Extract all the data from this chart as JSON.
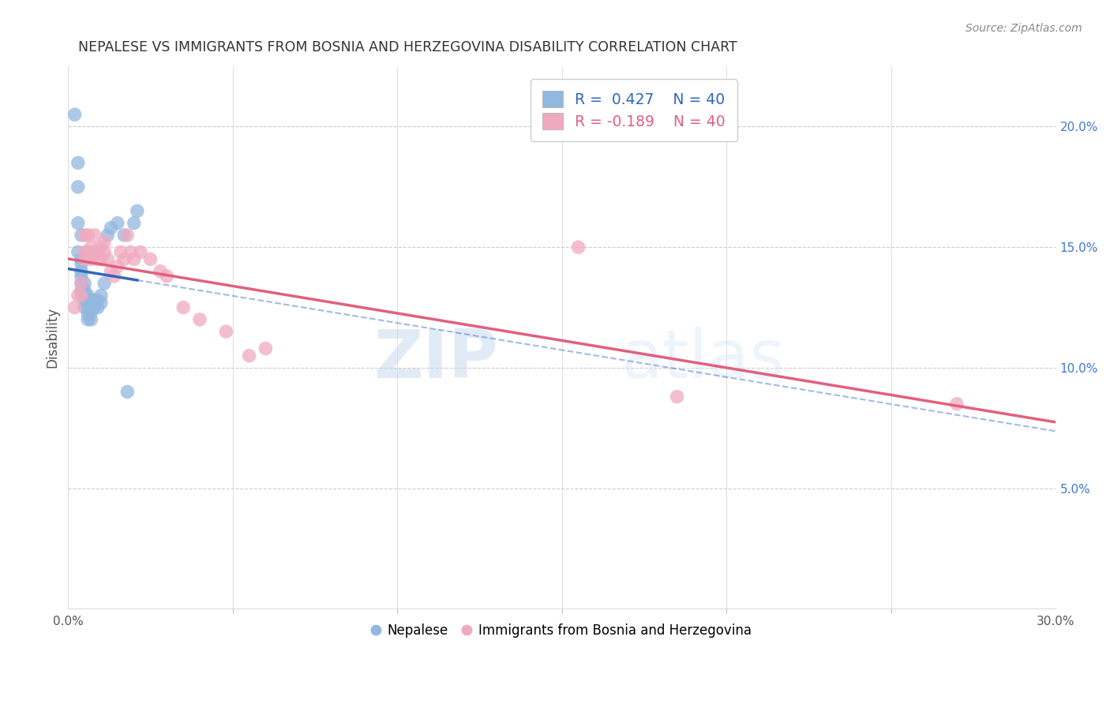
{
  "title": "NEPALESE VS IMMIGRANTS FROM BOSNIA AND HERZEGOVINA DISABILITY CORRELATION CHART",
  "source": "Source: ZipAtlas.com",
  "ylabel": "Disability",
  "right_yticks": [
    "20.0%",
    "15.0%",
    "10.0%",
    "5.0%"
  ],
  "right_ytick_vals": [
    0.2,
    0.15,
    0.1,
    0.05
  ],
  "xlim": [
    0.0,
    0.3
  ],
  "ylim": [
    0.0,
    0.225
  ],
  "blue_color": "#92b8e0",
  "pink_color": "#f0aabf",
  "blue_line_color": "#3366bb",
  "pink_line_color": "#e06080",
  "watermark_zip": "ZIP",
  "watermark_atlas": "atlas",
  "nepalese_x": [
    0.002,
    0.003,
    0.003,
    0.003,
    0.003,
    0.004,
    0.004,
    0.004,
    0.004,
    0.004,
    0.004,
    0.005,
    0.005,
    0.005,
    0.005,
    0.005,
    0.006,
    0.006,
    0.006,
    0.006,
    0.006,
    0.007,
    0.007,
    0.007,
    0.007,
    0.008,
    0.008,
    0.009,
    0.009,
    0.01,
    0.01,
    0.011,
    0.012,
    0.013,
    0.015,
    0.017,
    0.018,
    0.02,
    0.021,
    0.004
  ],
  "nepalese_y": [
    0.205,
    0.185,
    0.175,
    0.16,
    0.148,
    0.145,
    0.143,
    0.14,
    0.138,
    0.135,
    0.132,
    0.135,
    0.132,
    0.13,
    0.128,
    0.125,
    0.13,
    0.128,
    0.125,
    0.122,
    0.12,
    0.128,
    0.125,
    0.123,
    0.12,
    0.128,
    0.125,
    0.128,
    0.125,
    0.13,
    0.127,
    0.135,
    0.155,
    0.158,
    0.16,
    0.155,
    0.09,
    0.16,
    0.165,
    0.155
  ],
  "bosnia_x": [
    0.002,
    0.003,
    0.004,
    0.004,
    0.005,
    0.005,
    0.005,
    0.006,
    0.006,
    0.007,
    0.007,
    0.008,
    0.008,
    0.009,
    0.009,
    0.01,
    0.01,
    0.011,
    0.011,
    0.012,
    0.013,
    0.014,
    0.015,
    0.016,
    0.017,
    0.018,
    0.019,
    0.02,
    0.022,
    0.025,
    0.028,
    0.03,
    0.035,
    0.04,
    0.048,
    0.055,
    0.06,
    0.155,
    0.185,
    0.27
  ],
  "bosnia_y": [
    0.125,
    0.13,
    0.135,
    0.13,
    0.155,
    0.148,
    0.145,
    0.155,
    0.148,
    0.15,
    0.145,
    0.155,
    0.148,
    0.148,
    0.145,
    0.15,
    0.145,
    0.152,
    0.148,
    0.145,
    0.14,
    0.138,
    0.142,
    0.148,
    0.145,
    0.155,
    0.148,
    0.145,
    0.148,
    0.145,
    0.14,
    0.138,
    0.125,
    0.12,
    0.115,
    0.105,
    0.108,
    0.15,
    0.088,
    0.085
  ]
}
